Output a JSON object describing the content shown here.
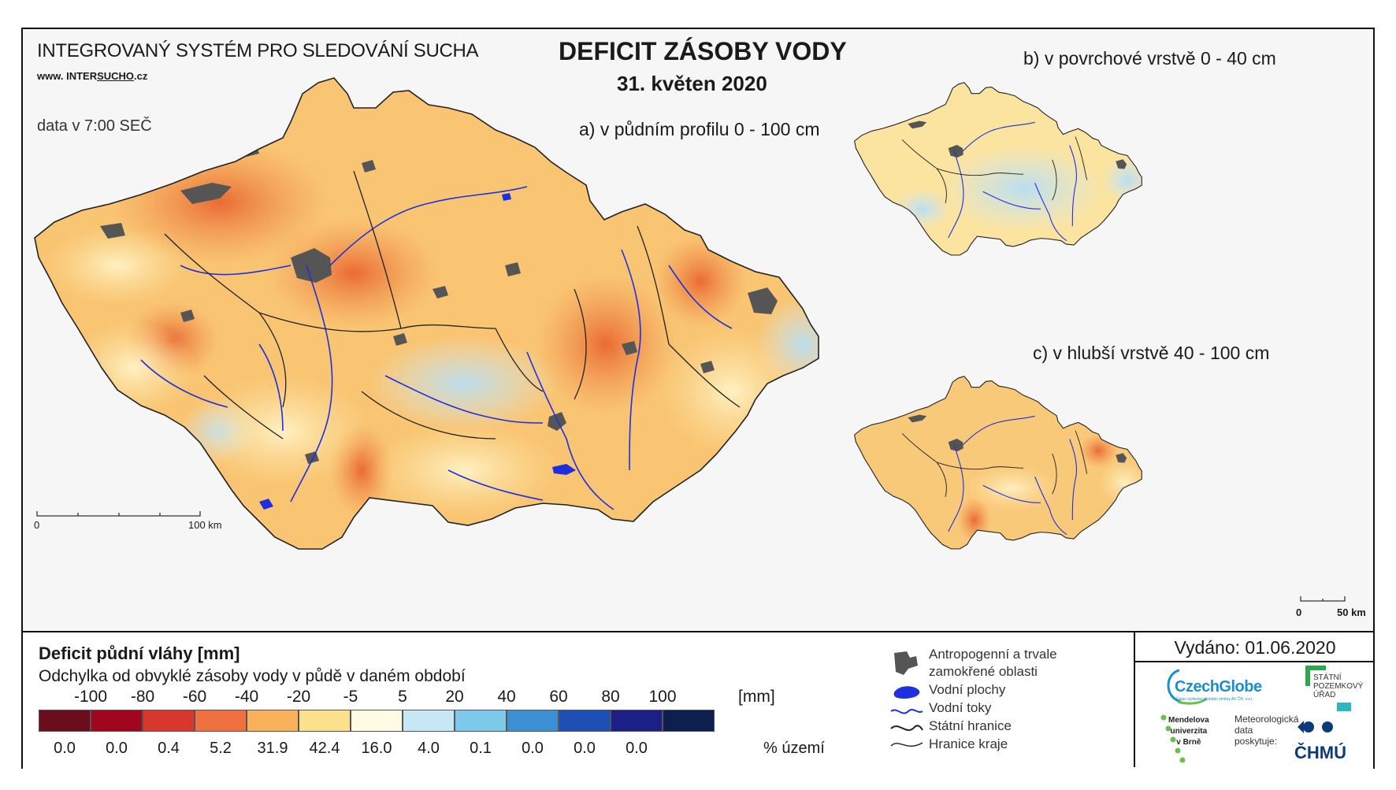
{
  "header": {
    "system_name": "INTEGROVANÝ SYSTÉM PRO SLEDOVÁNÍ SUCHA",
    "url_prefix": "www. INTER",
    "url_under": "SUCHO",
    "url_suffix": ".cz",
    "data_time": "data v 7:00 SEČ",
    "title": "DEFICIT ZÁSOBY VODY",
    "date": "31. květen 2020"
  },
  "maps": {
    "a_label": "a) v půdním profilu 0 - 100 cm",
    "b_label": "b) v povrchové vrstvě 0 - 40 cm",
    "c_label": "c) v hlubší vrstvě 40 - 100 cm",
    "scale_main": {
      "start": "0",
      "end": "100 km"
    },
    "scale_small": {
      "start": "0",
      "end": "50 km"
    }
  },
  "legend": {
    "title": "Deficit půdní vláhy  [mm]",
    "subtitle": "Odchylka od obvyklé zásoby vody v půdě v daném období",
    "ticks": [
      "-100",
      "-80",
      "-60",
      "-40",
      "-20",
      "-5",
      "5",
      "20",
      "40",
      "60",
      "80",
      "100"
    ],
    "unit": "[mm]",
    "classes": [
      {
        "color": "#6b0d1d",
        "percent": "0.0"
      },
      {
        "color": "#a0061e",
        "percent": "0.0"
      },
      {
        "color": "#d7372d",
        "percent": "0.4"
      },
      {
        "color": "#f07040",
        "percent": "5.2"
      },
      {
        "color": "#f8b15a",
        "percent": "31.9"
      },
      {
        "color": "#fbe08e",
        "percent": "42.4"
      },
      {
        "color": "#fffbe4",
        "percent": "16.0"
      },
      {
        "color": "#c7e7f6",
        "percent": "4.0"
      },
      {
        "color": "#7ec8ea",
        "percent": "0.1"
      },
      {
        "color": "#3b8fd2",
        "percent": "0.0"
      },
      {
        "color": "#1e4fb4",
        "percent": "0.0"
      },
      {
        "color": "#1c1f86",
        "percent": "0.0"
      },
      {
        "color": "#0c1f4e",
        "percent": ""
      }
    ],
    "percent_unit": "% území"
  },
  "symbols": {
    "urban": "Antropogenní a trvale zamokřené oblasti",
    "water_bodies": "Vodní plochy",
    "rivers": "Vodní toky",
    "state_border": "Státní hranice",
    "region_border": "Hranice kraje"
  },
  "issued": "Vydáno: 01.06.2020",
  "logos": {
    "czechglobe": "CzechGlobe",
    "czechglobe_small": "Ústav výzkumu globální změny AV ČR, v.v.i.",
    "spu": [
      "STÁTNÍ",
      "POZEMKOVÝ",
      "ÚŘAD"
    ],
    "mendel": [
      "Mendelova",
      "univerzita",
      "v Brně"
    ],
    "meteo": [
      "Meteorologická",
      "data",
      "poskytuje:"
    ],
    "chmu": "ČHMÚ"
  },
  "colors": {
    "river": "#1e2fe0",
    "urban": "#555555",
    "border": "#222222",
    "czechglobe_blue": "#1a8fd0",
    "mendel_green": "#6cc04a",
    "spu_green": "#2aa84a",
    "chmu_blue": "#0d3b7a"
  }
}
